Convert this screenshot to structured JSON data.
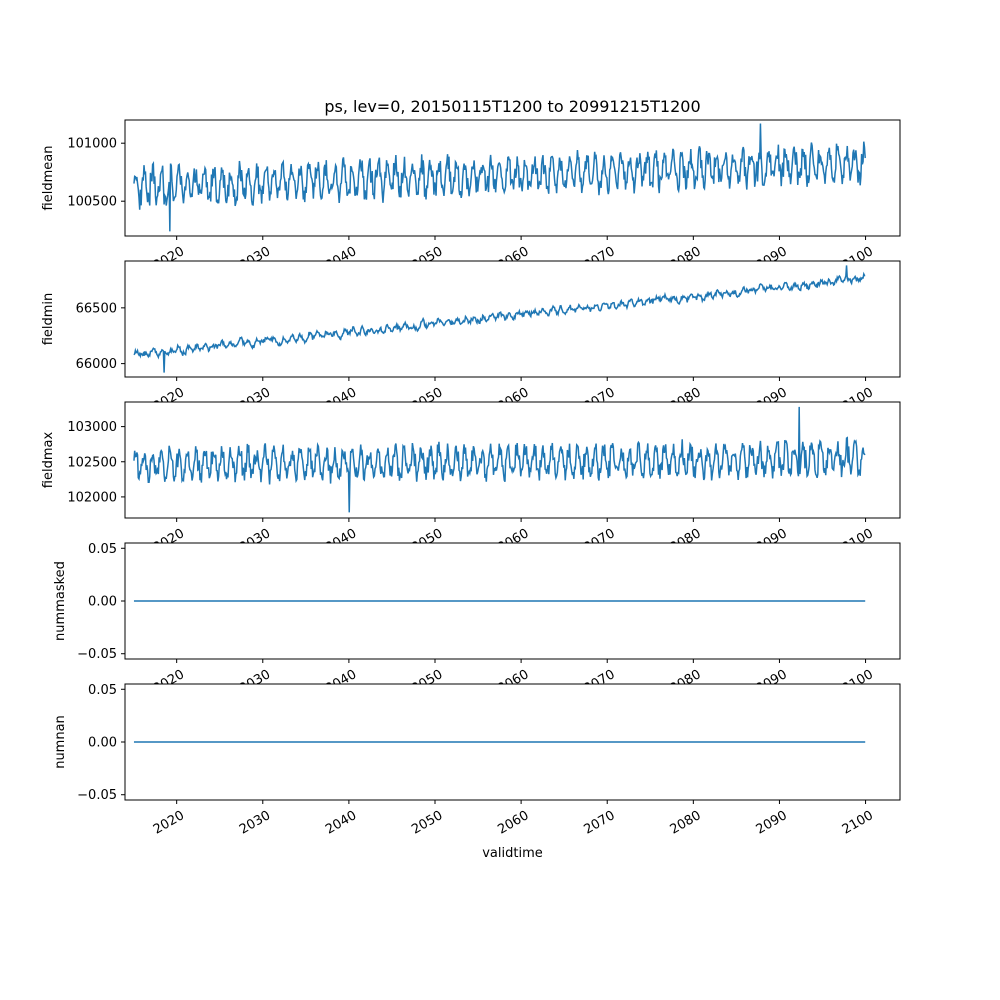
{
  "figure": {
    "title": "ps, lev=0, 20150115T1200 to 20991215T1200",
    "xlabel": "validtime",
    "line_color": "#1f77b4"
  },
  "chart_data": [
    {
      "type": "line",
      "ylabel": "fieldmean",
      "xlim": [
        2014,
        2104
      ],
      "ylim": [
        100200,
        101200
      ],
      "yticks": [
        100500,
        101000
      ],
      "ytick_labels": [
        "100500",
        "101000"
      ],
      "xticks": [
        2020,
        2030,
        2040,
        2050,
        2060,
        2070,
        2080,
        2090,
        2100
      ],
      "xtick_labels": [
        "2020",
        "2030",
        "2040",
        "2050",
        "2060",
        "2070",
        "2080",
        "2090",
        "2100"
      ],
      "x_start": 2015.04,
      "x_end": 2099.96,
      "n_points": 1020,
      "trend": [
        100620,
        100830
      ],
      "amplitude": 230,
      "generator": "seasonal",
      "min_point": [
        2019.2,
        100240
      ],
      "max_point": [
        2087.8,
        101170
      ]
    },
    {
      "type": "line",
      "ylabel": "fieldmin",
      "xlim": [
        2014,
        2104
      ],
      "ylim": [
        65880,
        66920
      ],
      "yticks": [
        66000,
        66500
      ],
      "ytick_labels": [
        "66000",
        "66500"
      ],
      "xticks": [
        2020,
        2030,
        2040,
        2050,
        2060,
        2070,
        2080,
        2090,
        2100
      ],
      "xtick_labels": [
        "2020",
        "2030",
        "2040",
        "2050",
        "2060",
        "2070",
        "2080",
        "2090",
        "2100"
      ],
      "x_start": 2015.04,
      "x_end": 2099.96,
      "n_points": 1020,
      "trend": [
        66080,
        66760
      ],
      "amplitude": 70,
      "generator": "smooth",
      "min_point": [
        2018.5,
        65920
      ],
      "max_point": [
        2097.8,
        66880
      ]
    },
    {
      "type": "line",
      "ylabel": "fieldmax",
      "xlim": [
        2014,
        2104
      ],
      "ylim": [
        101700,
        103350
      ],
      "yticks": [
        102000,
        102500,
        103000
      ],
      "ytick_labels": [
        "102000",
        "102500",
        "103000"
      ],
      "xticks": [
        2020,
        2030,
        2040,
        2050,
        2060,
        2070,
        2080,
        2090,
        2100
      ],
      "xtick_labels": [
        "2020",
        "2030",
        "2040",
        "2050",
        "2060",
        "2070",
        "2080",
        "2090",
        "2100"
      ],
      "x_start": 2015.04,
      "x_end": 2099.96,
      "n_points": 1020,
      "trend": [
        102450,
        102550
      ],
      "amplitude": 330,
      "generator": "seasonal",
      "min_point": [
        2040.0,
        101780
      ],
      "max_point": [
        2092.3,
        103280
      ]
    },
    {
      "type": "line",
      "ylabel": "nummasked",
      "xlim": [
        2014,
        2104
      ],
      "ylim": [
        -0.055,
        0.055
      ],
      "yticks": [
        -0.05,
        0.0,
        0.05
      ],
      "ytick_labels": [
        "−0.05",
        "0.00",
        "0.05"
      ],
      "xticks": [
        2020,
        2030,
        2040,
        2050,
        2060,
        2070,
        2080,
        2090,
        2100
      ],
      "xtick_labels": [
        "2020",
        "2030",
        "2040",
        "2050",
        "2060",
        "2070",
        "2080",
        "2090",
        "2100"
      ],
      "x_start": 2015.04,
      "x_end": 2099.96,
      "n_points": 2,
      "trend": [
        0,
        0
      ],
      "amplitude": 0,
      "generator": "constant"
    },
    {
      "type": "line",
      "ylabel": "numnan",
      "xlim": [
        2014,
        2104
      ],
      "ylim": [
        -0.055,
        0.055
      ],
      "yticks": [
        -0.05,
        0.0,
        0.05
      ],
      "ytick_labels": [
        "−0.05",
        "0.00",
        "0.05"
      ],
      "xticks": [
        2020,
        2030,
        2040,
        2050,
        2060,
        2070,
        2080,
        2090,
        2100
      ],
      "xtick_labels": [
        "2020",
        "2030",
        "2040",
        "2050",
        "2060",
        "2070",
        "2080",
        "2090",
        "2100"
      ],
      "x_start": 2015.04,
      "x_end": 2099.96,
      "n_points": 2,
      "trend": [
        0,
        0
      ],
      "amplitude": 0,
      "generator": "constant"
    }
  ]
}
